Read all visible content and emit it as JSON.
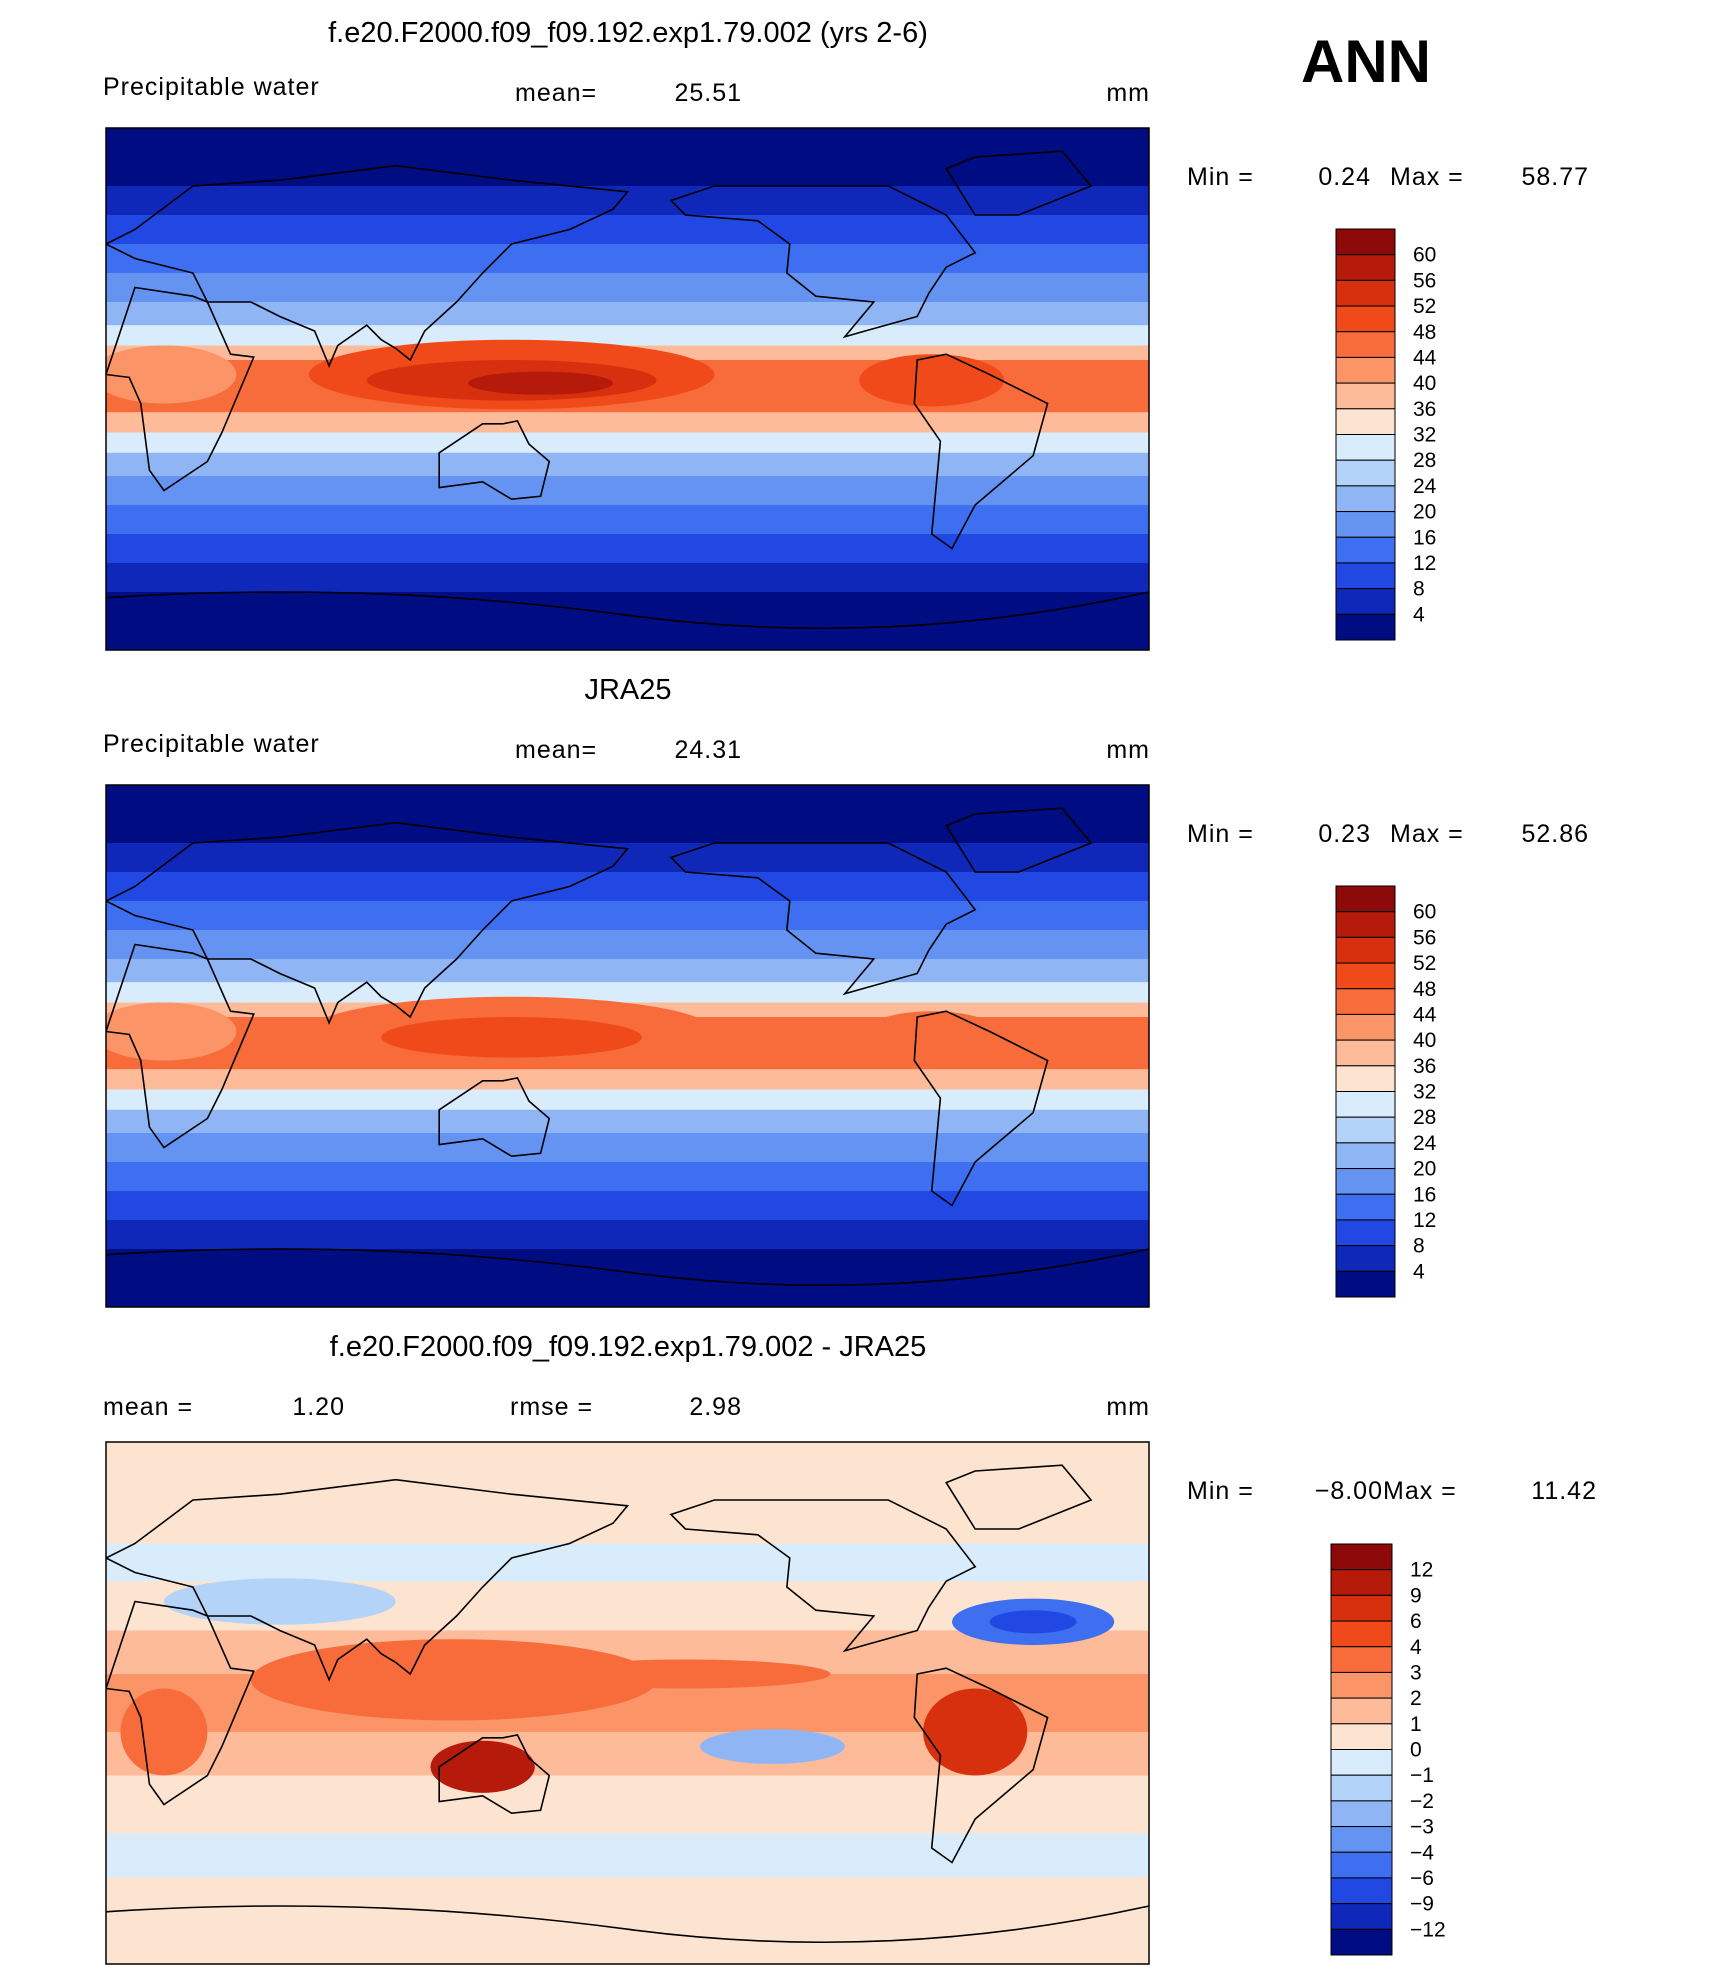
{
  "header": {
    "season": "ANN"
  },
  "panels": [
    {
      "title": "f.e20.F2000.f09_f09.192.exp1.79.002 (yrs 2-6)",
      "left": {
        "text": "Precipitable  water"
      },
      "center": {
        "label": "mean=",
        "value": "25.51"
      },
      "units": "mm",
      "min_label": "Min =",
      "min": "0.24",
      "max_label": "Max =",
      "max": "58.77",
      "colorbar": [
        "60",
        "56",
        "52",
        "48",
        "44",
        "40",
        "36",
        "32",
        "28",
        "24",
        "20",
        "16",
        "12",
        "8",
        "4"
      ]
    },
    {
      "title": "JRA25",
      "left": {
        "text": "Precipitable  water"
      },
      "center": {
        "label": "mean=",
        "value": "24.31"
      },
      "units": "mm",
      "min_label": "Min =",
      "min": "0.23",
      "max_label": "Max =",
      "max": "52.86",
      "colorbar": [
        "60",
        "56",
        "52",
        "48",
        "44",
        "40",
        "36",
        "32",
        "28",
        "24",
        "20",
        "16",
        "12",
        "8",
        "4"
      ]
    },
    {
      "title": "f.e20.F2000.f09_f09.192.exp1.79.002 - JRA25",
      "left": {
        "label": "mean =",
        "value": "1.20"
      },
      "center": {
        "label": "rmse =",
        "value": "2.98"
      },
      "units": "mm",
      "min_label": "Min =",
      "min": "−8.00",
      "max_label": "Max =",
      "max": "11.42",
      "colorbar": [
        "12",
        "9",
        "6",
        "4",
        "3",
        "2",
        "1",
        "0",
        "−1",
        "−2",
        "−3",
        "−4",
        "−6",
        "−9",
        "−12"
      ]
    }
  ]
}
